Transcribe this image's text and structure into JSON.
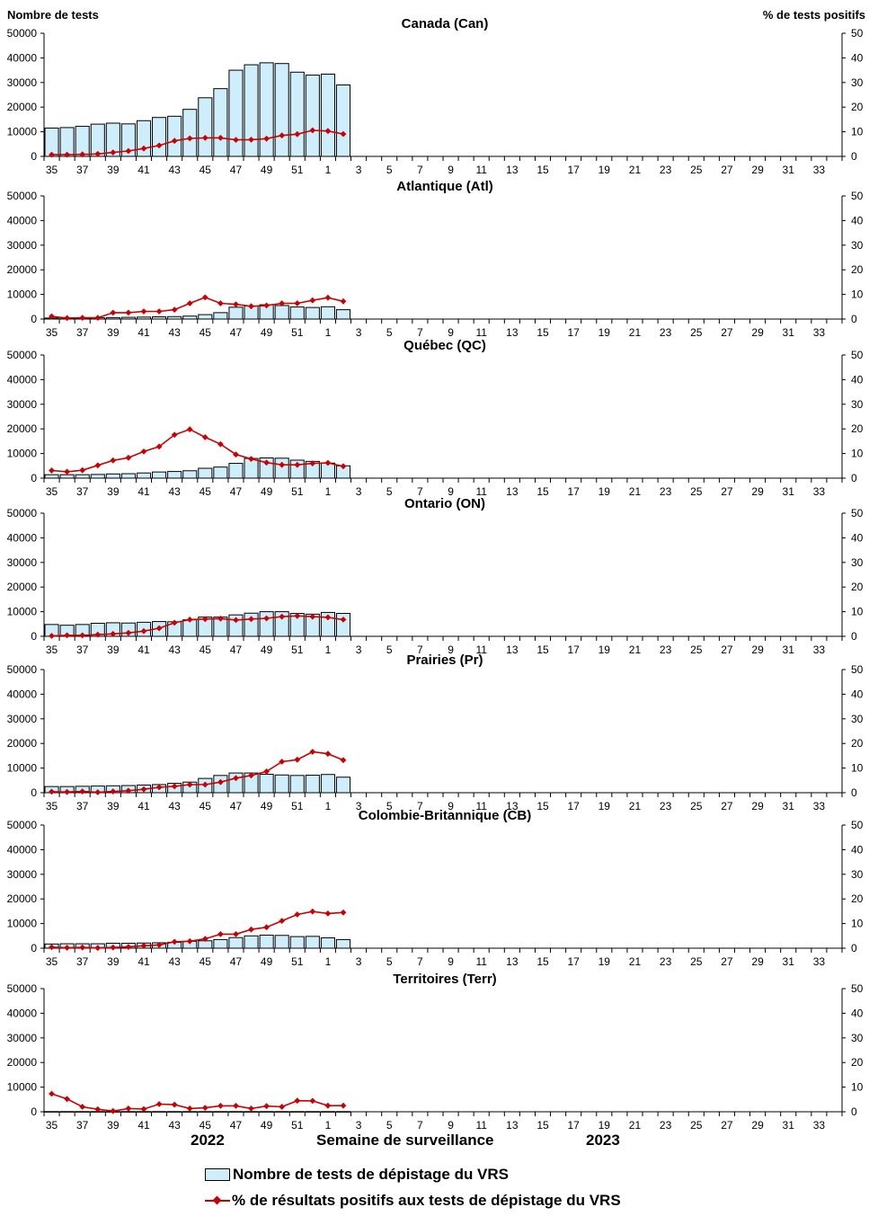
{
  "header": {
    "left_axis_title": "Nombre de tests",
    "right_axis_title": "% de tests positifs"
  },
  "footer": {
    "year_left": "2022",
    "xlabel": "Semaine de surveillance",
    "year_right": "2023"
  },
  "legend": {
    "bars_label": "Nombre de tests de dépistage du VRS",
    "line_label": "% de résultats positifs aux tests de dépistage du VRS"
  },
  "colors": {
    "bar_fill": "#cfeefb",
    "bar_stroke": "#000000",
    "line": "#cc0000"
  },
  "chart_data": [
    {
      "type": "bar",
      "title": "Canada (Can)",
      "categories": [
        "35",
        "36",
        "37",
        "38",
        "39",
        "40",
        "41",
        "42",
        "43",
        "44",
        "45",
        "46",
        "47",
        "48",
        "49",
        "50",
        "51",
        "52",
        "1",
        "2"
      ],
      "x_tick_labels": [
        "35",
        "37",
        "39",
        "41",
        "43",
        "45",
        "47",
        "49",
        "51",
        "1",
        "3",
        "5",
        "7",
        "9",
        "11",
        "13",
        "15",
        "17",
        "19",
        "21",
        "23",
        "25",
        "27",
        "29",
        "31",
        "33"
      ],
      "series": [
        {
          "name": "Nombre de tests de dépistage du VRS",
          "axis": "left",
          "values": [
            11500,
            11700,
            12200,
            13100,
            13500,
            13200,
            14500,
            15800,
            16300,
            19100,
            23800,
            27500,
            35000,
            37200,
            38000,
            37700,
            34200,
            33000,
            33400,
            29000
          ]
        },
        {
          "name": "% de résultats positifs aux tests de dépistage du VRS",
          "axis": "right",
          "values": [
            0.7,
            0.7,
            0.8,
            1.0,
            1.6,
            2.2,
            3.2,
            4.4,
            6.3,
            7.3,
            7.5,
            7.5,
            6.7,
            6.8,
            7.2,
            8.5,
            9.0,
            10.6,
            10.3,
            9.1
          ]
        }
      ],
      "ylim_left": [
        0,
        50000
      ],
      "ylim_right": [
        0,
        50
      ],
      "yticks_left": [
        "0",
        "10000",
        "20000",
        "30000",
        "40000",
        "50000"
      ],
      "yticks_right": [
        "0",
        "10",
        "20",
        "30",
        "40",
        "50"
      ]
    },
    {
      "type": "bar",
      "title": "Atlantique (Atl)",
      "categories": [
        "35",
        "36",
        "37",
        "38",
        "39",
        "40",
        "41",
        "42",
        "43",
        "44",
        "45",
        "46",
        "47",
        "48",
        "49",
        "50",
        "51",
        "52",
        "1",
        "2"
      ],
      "x_tick_labels": [
        "35",
        "37",
        "39",
        "41",
        "43",
        "45",
        "47",
        "49",
        "51",
        "1",
        "3",
        "5",
        "7",
        "9",
        "11",
        "13",
        "15",
        "17",
        "19",
        "21",
        "23",
        "25",
        "27",
        "29",
        "31",
        "33"
      ],
      "series": [
        {
          "name": "Nombre de tests de dépistage du VRS",
          "axis": "left",
          "values": [
            400,
            450,
            500,
            550,
            600,
            700,
            800,
            900,
            1000,
            1200,
            1800,
            2600,
            4800,
            5300,
            5800,
            5500,
            4900,
            4700,
            5000,
            3800
          ]
        },
        {
          "name": "% de résultats positifs aux tests de dépistage du VRS",
          "axis": "right",
          "values": [
            1.1,
            0.4,
            0.5,
            0.5,
            2.6,
            2.6,
            3.1,
            3.1,
            3.8,
            6.4,
            8.8,
            6.4,
            6.0,
            5.2,
            5.5,
            6.4,
            6.4,
            7.6,
            8.7,
            7.2
          ]
        }
      ],
      "ylim_left": [
        0,
        50000
      ],
      "ylim_right": [
        0,
        50
      ],
      "yticks_left": [
        "0",
        "10000",
        "20000",
        "30000",
        "40000",
        "50000"
      ],
      "yticks_right": [
        "0",
        "10",
        "20",
        "30",
        "40",
        "50"
      ]
    },
    {
      "type": "bar",
      "title": "Québec (QC)",
      "categories": [
        "35",
        "36",
        "37",
        "38",
        "39",
        "40",
        "41",
        "42",
        "43",
        "44",
        "45",
        "46",
        "47",
        "48",
        "49",
        "50",
        "51",
        "52",
        "1",
        "2"
      ],
      "x_tick_labels": [
        "35",
        "37",
        "39",
        "41",
        "43",
        "45",
        "47",
        "49",
        "51",
        "1",
        "3",
        "5",
        "7",
        "9",
        "11",
        "13",
        "15",
        "17",
        "19",
        "21",
        "23",
        "25",
        "27",
        "29",
        "31",
        "33"
      ],
      "series": [
        {
          "name": "Nombre de tests de dépistage du VRS",
          "axis": "left",
          "values": [
            1400,
            1400,
            1400,
            1500,
            1700,
            1800,
            2100,
            2500,
            2700,
            3000,
            4000,
            4500,
            6000,
            8000,
            8200,
            8100,
            7300,
            6800,
            6100,
            5000
          ]
        },
        {
          "name": "% de résultats positifs aux tests de dépistage du VRS",
          "axis": "right",
          "values": [
            3.1,
            2.6,
            3.2,
            5.2,
            7.2,
            8.3,
            10.8,
            12.8,
            17.6,
            19.8,
            16.6,
            13.8,
            9.6,
            7.8,
            6.3,
            5.4,
            5.4,
            6.0,
            6.2,
            4.8
          ]
        }
      ],
      "ylim_left": [
        0,
        50000
      ],
      "ylim_right": [
        0,
        50
      ],
      "yticks_left": [
        "0",
        "10000",
        "20000",
        "30000",
        "40000",
        "50000"
      ],
      "yticks_right": [
        "0",
        "10",
        "20",
        "30",
        "40",
        "50"
      ]
    },
    {
      "type": "bar",
      "title": "Ontario (ON)",
      "categories": [
        "35",
        "36",
        "37",
        "38",
        "39",
        "40",
        "41",
        "42",
        "43",
        "44",
        "45",
        "46",
        "47",
        "48",
        "49",
        "50",
        "51",
        "52",
        "1",
        "2"
      ],
      "x_tick_labels": [
        "35",
        "37",
        "39",
        "41",
        "43",
        "45",
        "47",
        "49",
        "51",
        "1",
        "3",
        "5",
        "7",
        "9",
        "11",
        "13",
        "15",
        "17",
        "19",
        "21",
        "23",
        "25",
        "27",
        "29",
        "31",
        "33"
      ],
      "series": [
        {
          "name": "Nombre de tests de dépistage du VRS",
          "axis": "left",
          "values": [
            4800,
            4500,
            4800,
            5300,
            5500,
            5400,
            5700,
            6000,
            5900,
            6700,
            7800,
            7800,
            8700,
            9400,
            10000,
            10000,
            9300,
            9000,
            9700,
            9300
          ]
        },
        {
          "name": "% de résultats positifs aux tests de dépistage du VRS",
          "axis": "right",
          "values": [
            0.2,
            0.4,
            0.4,
            0.7,
            1.0,
            1.4,
            2.1,
            3.3,
            5.5,
            6.8,
            7.0,
            7.2,
            6.6,
            7.0,
            7.3,
            8.0,
            8.3,
            8.0,
            7.7,
            6.8
          ]
        }
      ],
      "ylim_left": [
        0,
        50000
      ],
      "ylim_right": [
        0,
        50
      ],
      "yticks_left": [
        "0",
        "10000",
        "20000",
        "30000",
        "40000",
        "50000"
      ],
      "yticks_right": [
        "0",
        "10",
        "20",
        "30",
        "40",
        "50"
      ]
    },
    {
      "type": "bar",
      "title": "Prairies (Pr)",
      "categories": [
        "35",
        "36",
        "37",
        "38",
        "39",
        "40",
        "41",
        "42",
        "43",
        "44",
        "45",
        "46",
        "47",
        "48",
        "49",
        "50",
        "51",
        "52",
        "1",
        "2"
      ],
      "x_tick_labels": [
        "35",
        "37",
        "39",
        "41",
        "43",
        "45",
        "47",
        "49",
        "51",
        "1",
        "3",
        "5",
        "7",
        "9",
        "11",
        "13",
        "15",
        "17",
        "19",
        "21",
        "23",
        "25",
        "27",
        "29",
        "31",
        "33"
      ],
      "series": [
        {
          "name": "Nombre de tests de dépistage du VRS",
          "axis": "left",
          "values": [
            2500,
            2500,
            2600,
            2700,
            2800,
            2900,
            3100,
            3300,
            3800,
            4300,
            5800,
            7000,
            8000,
            8000,
            7500,
            7200,
            7000,
            7100,
            7400,
            6300
          ]
        },
        {
          "name": "% de résultats positifs aux tests de dépistage du VRS",
          "axis": "right",
          "values": [
            0.4,
            0.3,
            0.5,
            0.2,
            0.5,
            0.8,
            1.4,
            2.2,
            2.6,
            3.3,
            3.3,
            4.3,
            5.9,
            7.0,
            8.6,
            12.6,
            13.4,
            16.6,
            15.8,
            13.2
          ]
        }
      ],
      "ylim_left": [
        0,
        50000
      ],
      "ylim_right": [
        0,
        50
      ],
      "yticks_left": [
        "0",
        "10000",
        "20000",
        "30000",
        "40000",
        "50000"
      ],
      "yticks_right": [
        "0",
        "10",
        "20",
        "30",
        "40",
        "50"
      ]
    },
    {
      "type": "bar",
      "title": "Colombie-Britannique (CB)",
      "categories": [
        "35",
        "36",
        "37",
        "38",
        "39",
        "40",
        "41",
        "42",
        "43",
        "44",
        "45",
        "46",
        "47",
        "48",
        "49",
        "50",
        "51",
        "52",
        "1",
        "2"
      ],
      "x_tick_labels": [
        "35",
        "37",
        "39",
        "41",
        "43",
        "45",
        "47",
        "49",
        "51",
        "1",
        "3",
        "5",
        "7",
        "9",
        "11",
        "13",
        "15",
        "17",
        "19",
        "21",
        "23",
        "25",
        "27",
        "29",
        "31",
        "33"
      ],
      "series": [
        {
          "name": "Nombre de tests de dépistage du VRS",
          "axis": "left",
          "values": [
            1700,
            1800,
            1800,
            1800,
            2000,
            2000,
            2100,
            2200,
            2400,
            2800,
            3000,
            3500,
            4300,
            5000,
            5300,
            5200,
            4700,
            4800,
            4200,
            3500
          ]
        },
        {
          "name": "% de résultats positifs aux tests de dépistage du VRS",
          "axis": "right",
          "values": [
            0.4,
            0.2,
            0.3,
            0.1,
            0.3,
            0.5,
            1.0,
            1.3,
            2.6,
            2.8,
            3.8,
            5.7,
            5.7,
            7.6,
            8.5,
            11.1,
            13.7,
            14.9,
            14.1,
            14.5
          ]
        }
      ],
      "ylim_left": [
        0,
        50000
      ],
      "ylim_right": [
        0,
        50
      ],
      "yticks_left": [
        "0",
        "10000",
        "20000",
        "30000",
        "40000",
        "50000"
      ],
      "yticks_right": [
        "0",
        "10",
        "20",
        "30",
        "40",
        "50"
      ]
    },
    {
      "type": "bar",
      "title": "Territoires (Terr)",
      "categories": [
        "35",
        "36",
        "37",
        "38",
        "39",
        "40",
        "41",
        "42",
        "43",
        "44",
        "45",
        "46",
        "47",
        "48",
        "49",
        "50",
        "51",
        "52",
        "1",
        "2"
      ],
      "x_tick_labels": [
        "35",
        "37",
        "39",
        "41",
        "43",
        "45",
        "47",
        "49",
        "51",
        "1",
        "3",
        "5",
        "7",
        "9",
        "11",
        "13",
        "15",
        "17",
        "19",
        "21",
        "23",
        "25",
        "27",
        "29",
        "31",
        "33"
      ],
      "series": [
        {
          "name": "Nombre de tests de dépistage du VRS",
          "axis": "left",
          "values": [
            80,
            80,
            80,
            80,
            80,
            80,
            80,
            80,
            80,
            80,
            80,
            80,
            80,
            80,
            80,
            80,
            80,
            80,
            80,
            80
          ]
        },
        {
          "name": "% de résultats positifs aux tests de dépistage du VRS",
          "axis": "right",
          "values": [
            7.3,
            5.2,
            2.0,
            1.0,
            0.3,
            1.3,
            1.1,
            3.1,
            2.9,
            1.3,
            1.6,
            2.4,
            2.4,
            1.3,
            2.3,
            2.0,
            4.5,
            4.4,
            2.5,
            2.5
          ]
        }
      ],
      "ylim_left": [
        0,
        50000
      ],
      "ylim_right": [
        0,
        50
      ],
      "yticks_left": [
        "0",
        "10000",
        "20000",
        "30000",
        "40000",
        "50000"
      ],
      "yticks_right": [
        "0",
        "10",
        "20",
        "30",
        "40",
        "50"
      ]
    }
  ]
}
